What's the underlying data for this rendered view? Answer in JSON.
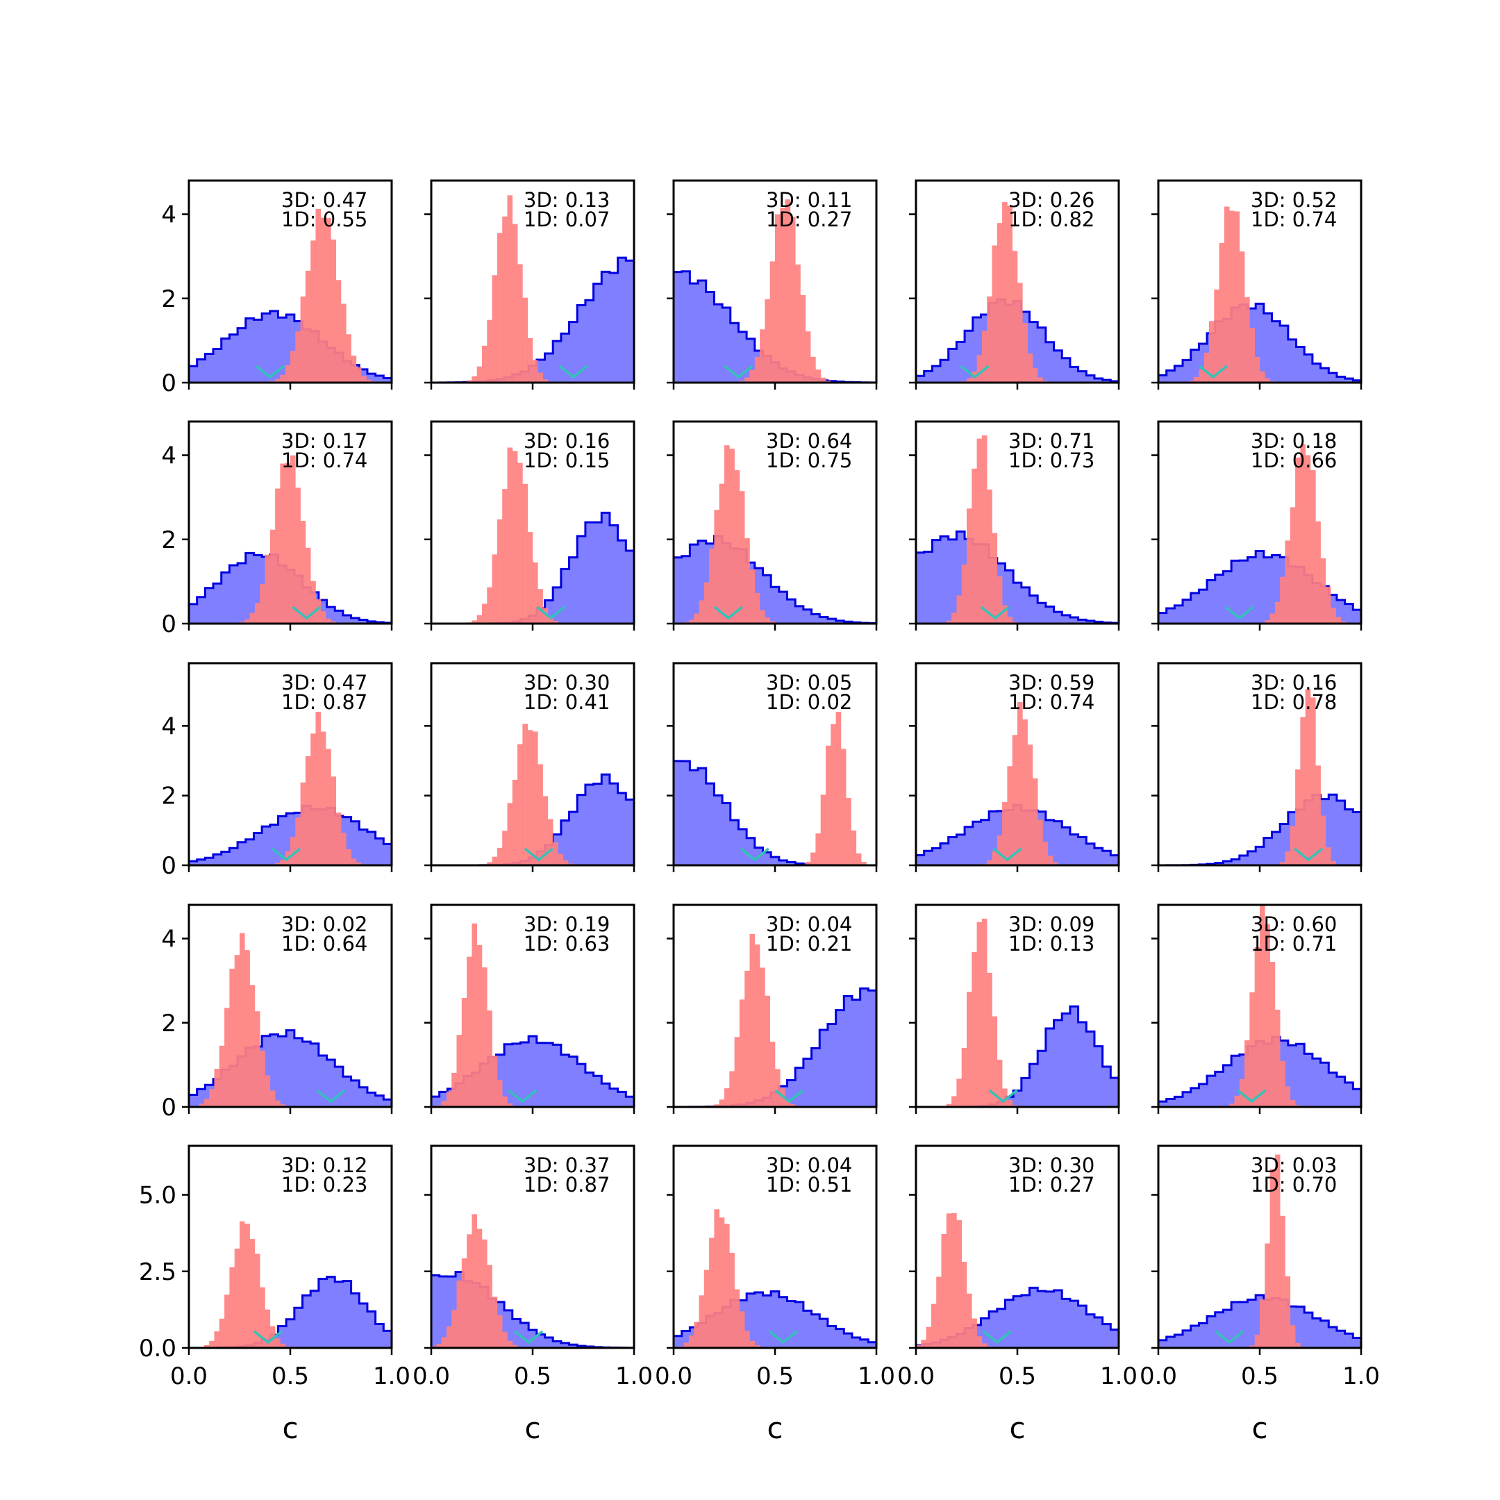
{
  "chart_data": {
    "type": "histogram-grid",
    "rows": 5,
    "cols": 5,
    "xlabel": "c",
    "xlim": [
      0,
      1
    ],
    "x_ticks": [
      "0.0",
      "0.5",
      "1.0"
    ],
    "row_ylims": [
      [
        0,
        4.8
      ],
      [
        0,
        4.8
      ],
      [
        0,
        5.8
      ],
      [
        0,
        4.8
      ],
      [
        0,
        6.6
      ]
    ],
    "row_y_ticks": [
      [
        {
          "v": 0,
          "label": "0"
        },
        {
          "v": 2,
          "label": "2"
        },
        {
          "v": 4,
          "label": "4"
        }
      ],
      [
        {
          "v": 0,
          "label": "0"
        },
        {
          "v": 2,
          "label": "2"
        },
        {
          "v": 4,
          "label": "4"
        }
      ],
      [
        {
          "v": 0,
          "label": "0"
        },
        {
          "v": 2,
          "label": "2"
        },
        {
          "v": 4,
          "label": "4"
        }
      ],
      [
        {
          "v": 0,
          "label": "0"
        },
        {
          "v": 2,
          "label": "2"
        },
        {
          "v": 4,
          "label": "4"
        }
      ],
      [
        {
          "v": 0,
          "label": "0.0"
        },
        {
          "v": 2.5,
          "label": "2.5"
        },
        {
          "v": 5,
          "label": "5.0"
        }
      ]
    ],
    "colors": {
      "blue_fill": "#7f7fff",
      "blue_edge": "#0000e0",
      "red_fill": "#ff8080",
      "marker": "#33c2b8"
    },
    "panels": [
      {
        "text": [
          "3D: 0.47",
          "1D: 0.55"
        ],
        "marker": 0.4,
        "blue": {
          "mu": 0.42,
          "sigma": 0.24,
          "peak": 1.65
        },
        "red": {
          "mu": 0.66,
          "sigma": 0.08,
          "peak": 4.1
        }
      },
      {
        "text": [
          "3D: 0.13",
          "1D: 0.07"
        ],
        "marker": 0.7,
        "blue": {
          "mu": 0.98,
          "sigma": 0.24,
          "peak": 2.9
        },
        "red": {
          "mu": 0.38,
          "sigma": 0.065,
          "peak": 4.3
        }
      },
      {
        "text": [
          "3D: 0.11",
          "1D: 0.27"
        ],
        "marker": 0.32,
        "blue": {
          "mu": 0.02,
          "sigma": 0.26,
          "peak": 2.6
        },
        "red": {
          "mu": 0.55,
          "sigma": 0.07,
          "peak": 4.4
        }
      },
      {
        "text": [
          "3D: 0.26",
          "1D: 0.82"
        ],
        "marker": 0.29,
        "blue": {
          "mu": 0.44,
          "sigma": 0.19,
          "peak": 1.95
        },
        "red": {
          "mu": 0.44,
          "sigma": 0.065,
          "peak": 4.3
        }
      },
      {
        "text": [
          "3D: 0.52",
          "1D: 0.74"
        ],
        "marker": 0.27,
        "blue": {
          "mu": 0.45,
          "sigma": 0.2,
          "peak": 1.85
        },
        "red": {
          "mu": 0.36,
          "sigma": 0.065,
          "peak": 4.3
        }
      },
      {
        "text": [
          "3D: 0.17",
          "1D: 0.74"
        ],
        "marker": 0.58,
        "blue": {
          "mu": 0.35,
          "sigma": 0.21,
          "peak": 1.65
        },
        "red": {
          "mu": 0.49,
          "sigma": 0.075,
          "peak": 4.0
        }
      },
      {
        "text": [
          "3D: 0.16",
          "1D: 0.15"
        ],
        "marker": 0.59,
        "blue": {
          "mu": 0.84,
          "sigma": 0.15,
          "peak": 2.55
        },
        "red": {
          "mu": 0.41,
          "sigma": 0.07,
          "peak": 4.2
        }
      },
      {
        "text": [
          "3D: 0.64",
          "1D: 0.75"
        ],
        "marker": 0.27,
        "blue": {
          "mu": 0.2,
          "sigma": 0.24,
          "peak": 2.0
        },
        "red": {
          "mu": 0.28,
          "sigma": 0.07,
          "peak": 4.2
        }
      },
      {
        "text": [
          "3D: 0.71",
          "1D: 0.73"
        ],
        "marker": 0.39,
        "blue": {
          "mu": 0.2,
          "sigma": 0.25,
          "peak": 2.1
        },
        "red": {
          "mu": 0.32,
          "sigma": 0.055,
          "peak": 4.5
        }
      },
      {
        "text": [
          "3D: 0.18",
          "1D: 0.66"
        ],
        "marker": 0.4,
        "blue": {
          "mu": 0.52,
          "sigma": 0.26,
          "peak": 1.65
        },
        "red": {
          "mu": 0.72,
          "sigma": 0.065,
          "peak": 4.3
        }
      },
      {
        "text": [
          "3D: 0.47",
          "1D: 0.87"
        ],
        "marker": 0.48,
        "blue": {
          "mu": 0.62,
          "sigma": 0.26,
          "peak": 1.65
        },
        "red": {
          "mu": 0.64,
          "sigma": 0.07,
          "peak": 4.2
        }
      },
      {
        "text": [
          "3D: 0.30",
          "1D: 0.41"
        ],
        "marker": 0.53,
        "blue": {
          "mu": 0.85,
          "sigma": 0.16,
          "peak": 2.5
        },
        "red": {
          "mu": 0.48,
          "sigma": 0.07,
          "peak": 4.1
        }
      },
      {
        "text": [
          "3D: 0.05",
          "1D: 0.02"
        ],
        "marker": 0.4,
        "blue": {
          "mu": 0.05,
          "sigma": 0.2,
          "peak": 2.95
        },
        "red": {
          "mu": 0.8,
          "sigma": 0.05,
          "peak": 4.4
        }
      },
      {
        "text": [
          "3D: 0.59",
          "1D: 0.74"
        ],
        "marker": 0.45,
        "blue": {
          "mu": 0.5,
          "sigma": 0.26,
          "peak": 1.65
        },
        "red": {
          "mu": 0.52,
          "sigma": 0.06,
          "peak": 4.5
        }
      },
      {
        "text": [
          "3D: 0.16",
          "1D: 0.78"
        ],
        "marker": 0.74,
        "blue": {
          "mu": 0.82,
          "sigma": 0.2,
          "peak": 2.0
        },
        "red": {
          "mu": 0.74,
          "sigma": 0.045,
          "peak": 5.2
        }
      },
      {
        "text": [
          "3D: 0.02",
          "1D: 0.64"
        ],
        "marker": 0.7,
        "blue": {
          "mu": 0.47,
          "sigma": 0.24,
          "peak": 1.75
        },
        "red": {
          "mu": 0.26,
          "sigma": 0.07,
          "peak": 4.0
        }
      },
      {
        "text": [
          "3D: 0.19",
          "1D: 0.63"
        ],
        "marker": 0.45,
        "blue": {
          "mu": 0.5,
          "sigma": 0.25,
          "peak": 1.6
        },
        "red": {
          "mu": 0.22,
          "sigma": 0.06,
          "peak": 4.2
        }
      },
      {
        "text": [
          "3D: 0.04",
          "1D: 0.21"
        ],
        "marker": 0.57,
        "blue": {
          "mu": 0.95,
          "sigma": 0.22,
          "peak": 2.75
        },
        "red": {
          "mu": 0.4,
          "sigma": 0.065,
          "peak": 4.0
        }
      },
      {
        "text": [
          "3D: 0.09",
          "1D: 0.13"
        ],
        "marker": 0.43,
        "blue": {
          "mu": 0.76,
          "sigma": 0.14,
          "peak": 2.3
        },
        "red": {
          "mu": 0.32,
          "sigma": 0.055,
          "peak": 4.5
        }
      },
      {
        "text": [
          "3D: 0.60",
          "1D: 0.71"
        ],
        "marker": 0.46,
        "blue": {
          "mu": 0.58,
          "sigma": 0.25,
          "peak": 1.6
        },
        "red": {
          "mu": 0.52,
          "sigma": 0.055,
          "peak": 4.7
        }
      },
      {
        "text": [
          "3D: 0.12",
          "1D: 0.23"
        ],
        "marker": 0.39,
        "blue": {
          "mu": 0.71,
          "sigma": 0.16,
          "peak": 2.3
        },
        "red": {
          "mu": 0.28,
          "sigma": 0.07,
          "peak": 4.1
        }
      },
      {
        "text": [
          "3D: 0.37",
          "1D: 0.87"
        ],
        "marker": 0.48,
        "blue": {
          "mu": 0.1,
          "sigma": 0.24,
          "peak": 2.4
        },
        "red": {
          "mu": 0.22,
          "sigma": 0.07,
          "peak": 4.2
        }
      },
      {
        "text": [
          "3D: 0.04",
          "1D: 0.51"
        ],
        "marker": 0.54,
        "blue": {
          "mu": 0.45,
          "sigma": 0.25,
          "peak": 1.8
        },
        "red": {
          "mu": 0.23,
          "sigma": 0.065,
          "peak": 4.5
        }
      },
      {
        "text": [
          "3D: 0.30",
          "1D: 0.27"
        ],
        "marker": 0.4,
        "blue": {
          "mu": 0.62,
          "sigma": 0.24,
          "peak": 1.9
        },
        "red": {
          "mu": 0.18,
          "sigma": 0.06,
          "peak": 4.6
        }
      },
      {
        "text": [
          "3D: 0.03",
          "1D: 0.70"
        ],
        "marker": 0.35,
        "blue": {
          "mu": 0.52,
          "sigma": 0.26,
          "peak": 1.65
        },
        "red": {
          "mu": 0.58,
          "sigma": 0.04,
          "peak": 6.3
        }
      }
    ]
  }
}
